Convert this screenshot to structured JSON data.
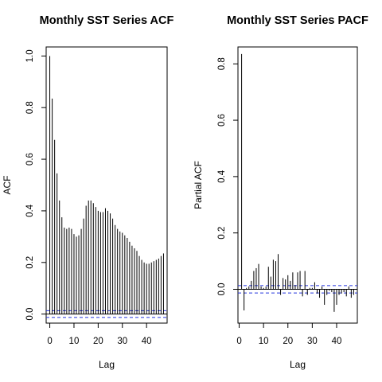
{
  "chart_data": [
    {
      "type": "bar",
      "title": "Monthly SST Series ACF",
      "xlabel": "Lag",
      "ylabel": "ACF",
      "xlim": [
        -1.5,
        48.5
      ],
      "ylim": [
        -0.035,
        1.035
      ],
      "xticks": [
        0,
        10,
        20,
        30,
        40
      ],
      "yticks": [
        0.0,
        0.2,
        0.4,
        0.6,
        0.8,
        1.0
      ],
      "ytick_labels": [
        "0.0",
        "0.2",
        "0.4",
        "0.6",
        "0.8",
        "1.0"
      ],
      "conf_band": [
        -0.013,
        0.013
      ],
      "lags": [
        0,
        1,
        2,
        3,
        4,
        5,
        6,
        7,
        8,
        9,
        10,
        11,
        12,
        13,
        14,
        15,
        16,
        17,
        18,
        19,
        20,
        21,
        22,
        23,
        24,
        25,
        26,
        27,
        28,
        29,
        30,
        31,
        32,
        33,
        34,
        35,
        36,
        37,
        38,
        39,
        40,
        41,
        42,
        43,
        44,
        45,
        46,
        47
      ],
      "values": [
        1.0,
        0.835,
        0.675,
        0.545,
        0.44,
        0.375,
        0.335,
        0.33,
        0.335,
        0.33,
        0.31,
        0.3,
        0.305,
        0.33,
        0.37,
        0.42,
        0.44,
        0.44,
        0.43,
        0.415,
        0.4,
        0.395,
        0.395,
        0.41,
        0.4,
        0.39,
        0.37,
        0.345,
        0.33,
        0.32,
        0.315,
        0.305,
        0.295,
        0.28,
        0.265,
        0.255,
        0.245,
        0.225,
        0.21,
        0.2,
        0.195,
        0.195,
        0.2,
        0.205,
        0.21,
        0.215,
        0.225,
        0.235
      ]
    },
    {
      "type": "bar",
      "title": "Monthly SST Series PACF",
      "xlabel": "Lag",
      "ylabel": "Partial ACF",
      "xlim": [
        -0.5,
        48.5
      ],
      "ylim": [
        -0.12,
        0.86
      ],
      "xticks": [
        0,
        10,
        20,
        30,
        40
      ],
      "yticks": [
        0.0,
        0.2,
        0.4,
        0.6,
        0.8
      ],
      "ytick_labels": [
        "0.0",
        "0.2",
        "0.4",
        "0.6",
        "0.8"
      ],
      "conf_band": [
        -0.013,
        0.013
      ],
      "lags": [
        1,
        2,
        3,
        4,
        5,
        6,
        7,
        8,
        9,
        10,
        11,
        12,
        13,
        14,
        15,
        16,
        17,
        18,
        19,
        20,
        21,
        22,
        23,
        24,
        25,
        26,
        27,
        28,
        29,
        30,
        31,
        32,
        33,
        34,
        35,
        36,
        37,
        38,
        39,
        40,
        41,
        42,
        43,
        44,
        45,
        46,
        47
      ],
      "values": [
        0.835,
        -0.075,
        0.005,
        0.01,
        0.03,
        0.065,
        0.075,
        0.09,
        0.01,
        0.005,
        0.01,
        0.08,
        0.045,
        0.105,
        0.1,
        0.125,
        -0.02,
        0.04,
        0.035,
        0.05,
        0.03,
        0.06,
        0.015,
        0.06,
        0.065,
        -0.025,
        0.065,
        -0.02,
        0.005,
        0.005,
        0.025,
        -0.015,
        -0.03,
        0.01,
        -0.055,
        -0.02,
        -0.005,
        -0.01,
        -0.08,
        -0.055,
        -0.02,
        -0.015,
        -0.01,
        -0.025,
        0.01,
        -0.03,
        -0.02
      ]
    }
  ]
}
